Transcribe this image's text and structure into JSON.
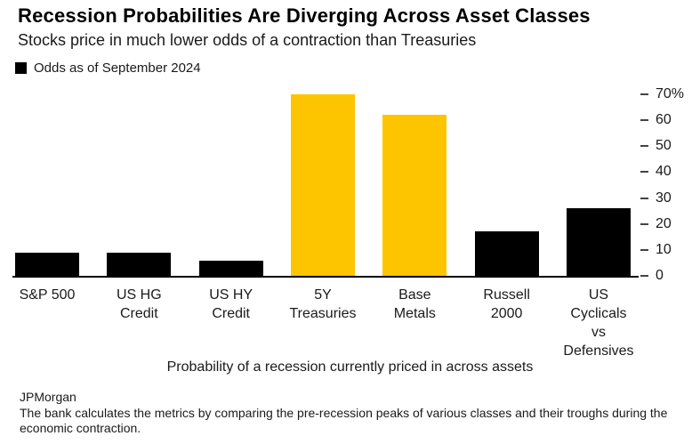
{
  "header": {
    "title": "Recession Probabilities Are Diverging Across Asset Classes",
    "subtitle": "Stocks price in much lower odds of a contraction than Treasuries"
  },
  "legend": {
    "label": "Odds as of September 2024",
    "swatch_color": "#000000"
  },
  "chart_data": {
    "type": "bar",
    "title": "Recession Probabilities Are Diverging Across Asset Classes",
    "subtitle": "Stocks price in much lower odds of a contraction than Treasuries",
    "categories": [
      "S&P 500",
      "US HG Credit",
      "US HY Credit",
      "5Y Treasuries",
      "Base Metals",
      "Russell 2000",
      "US Cyclicals vs Defensives"
    ],
    "category_display_lines": [
      "S&P 500",
      "US HG\nCredit",
      "US HY\nCredit",
      "5Y\nTreasuries",
      "Base\nMetals",
      "Russell\n2000",
      "US\nCyclicals vs\nDefensives"
    ],
    "values": [
      9,
      9,
      6,
      70,
      62,
      17,
      26
    ],
    "unit": "%",
    "bar_colors": [
      "#000000",
      "#000000",
      "#000000",
      "#fdc500",
      "#fdc500",
      "#000000",
      "#000000"
    ],
    "series_name": "Odds as of September 2024",
    "xlabel": "Probability of a recession currently priced in across assets",
    "ylabel": "",
    "ylim": [
      0,
      70
    ],
    "yticks": [
      {
        "value": 70,
        "label": "70%"
      },
      {
        "value": 60,
        "label": "60"
      },
      {
        "value": 50,
        "label": "50"
      },
      {
        "value": 40,
        "label": "40"
      },
      {
        "value": 30,
        "label": "30"
      },
      {
        "value": 20,
        "label": "20"
      },
      {
        "value": 10,
        "label": "10"
      },
      {
        "value": 0,
        "label": "0"
      }
    ],
    "grid": false,
    "legend_position": "top-left",
    "y_axis_side": "right"
  },
  "caption": {
    "text": "Probability of a recession currently priced in across assets"
  },
  "footer": {
    "source": "JPMorgan",
    "note": "The bank calculates the metrics by comparing the pre-recession peaks of various classes and their troughs during the economic contraction."
  },
  "colors": {
    "accent_yellow": "#fdc500",
    "bar_black": "#000000",
    "background": "#ffffff",
    "text": "#1a1a1a"
  }
}
